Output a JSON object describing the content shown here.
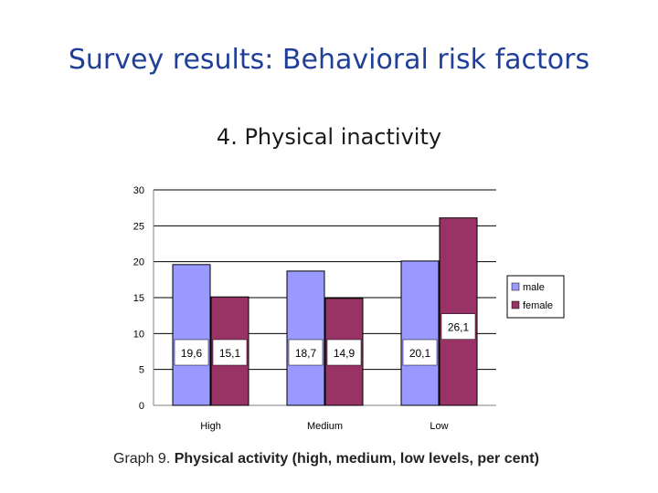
{
  "title": "Survey results: Behavioral risk factors",
  "subtitle": "4. Physical inactivity",
  "caption": {
    "prefix": "Graph 9. ",
    "bold": "Physical activity (high, medium, low levels, per cent)"
  },
  "colors": {
    "title": "#1f3f9a",
    "male": "#9999ff",
    "female": "#993366"
  },
  "chart_data": {
    "type": "bar",
    "categories": [
      "High",
      "Medium",
      "Low"
    ],
    "series": [
      {
        "name": "male",
        "values": [
          19.6,
          18.7,
          20.1
        ],
        "labels": [
          "19,6",
          "18,7",
          "20,1"
        ]
      },
      {
        "name": "female",
        "values": [
          15.1,
          14.9,
          26.1
        ],
        "labels": [
          "15,1",
          "14,9",
          "26,1"
        ]
      }
    ],
    "yticks": [
      0,
      5,
      10,
      15,
      20,
      25,
      30
    ],
    "ylim": [
      0,
      30
    ],
    "grid": true,
    "legend": "right",
    "xlabel": "",
    "ylabel": ""
  }
}
